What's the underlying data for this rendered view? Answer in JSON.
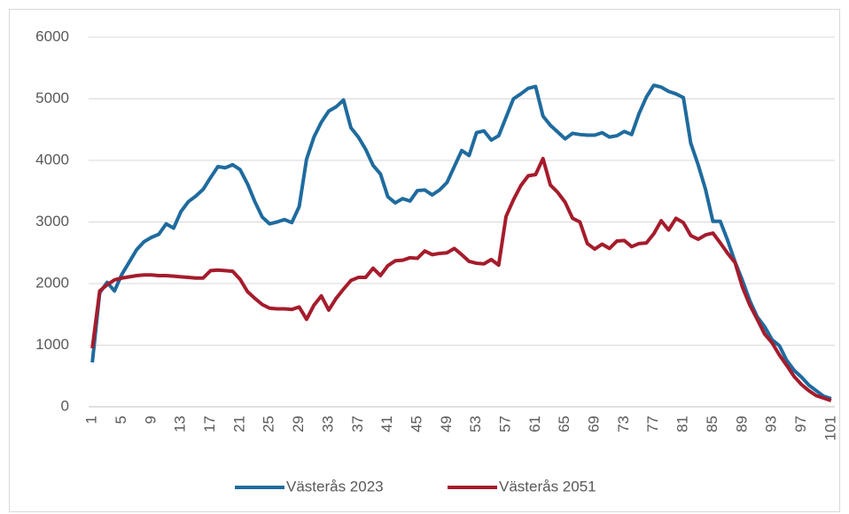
{
  "chart_data": {
    "type": "line",
    "x": [
      1,
      2,
      3,
      4,
      5,
      6,
      7,
      8,
      9,
      10,
      11,
      12,
      13,
      14,
      15,
      16,
      17,
      18,
      19,
      20,
      21,
      22,
      23,
      24,
      25,
      26,
      27,
      28,
      29,
      30,
      31,
      32,
      33,
      34,
      35,
      36,
      37,
      38,
      39,
      40,
      41,
      42,
      43,
      44,
      45,
      46,
      47,
      48,
      49,
      50,
      51,
      52,
      53,
      54,
      55,
      56,
      57,
      58,
      59,
      60,
      61,
      62,
      63,
      64,
      65,
      66,
      67,
      68,
      69,
      70,
      71,
      72,
      73,
      74,
      75,
      76,
      77,
      78,
      79,
      80,
      81,
      82,
      83,
      84,
      85,
      86,
      87,
      88,
      89,
      90,
      91,
      92,
      93,
      94,
      95,
      96,
      97,
      98,
      99,
      100,
      101
    ],
    "xlim": [
      0.5,
      101.5
    ],
    "xticks": [
      1,
      5,
      9,
      13,
      17,
      21,
      25,
      29,
      33,
      37,
      41,
      45,
      49,
      53,
      57,
      61,
      65,
      69,
      73,
      77,
      81,
      85,
      89,
      93,
      97,
      101
    ],
    "ylim": [
      0,
      6000
    ],
    "yticks": [
      0,
      1000,
      2000,
      3000,
      4000,
      5000,
      6000
    ],
    "grid": true,
    "legend": "bottom",
    "series": [
      {
        "name": "Västerås 2023",
        "color": "#1f6b9e",
        "values": [
          720,
          1850,
          2020,
          1880,
          2150,
          2350,
          2550,
          2680,
          2750,
          2800,
          2970,
          2900,
          3170,
          3330,
          3420,
          3530,
          3720,
          3900,
          3880,
          3930,
          3850,
          3620,
          3330,
          3080,
          2970,
          3000,
          3040,
          2990,
          3250,
          4020,
          4380,
          4620,
          4800,
          4870,
          4980,
          4530,
          4380,
          4180,
          3920,
          3780,
          3410,
          3310,
          3380,
          3340,
          3510,
          3520,
          3440,
          3520,
          3640,
          3900,
          4160,
          4080,
          4450,
          4480,
          4330,
          4400,
          4700,
          5000,
          5080,
          5170,
          5200,
          4720,
          4570,
          4460,
          4350,
          4440,
          4420,
          4410,
          4410,
          4450,
          4380,
          4400,
          4470,
          4420,
          4760,
          5030,
          5220,
          5190,
          5120,
          5080,
          5020,
          4280,
          3930,
          3530,
          3010,
          3010,
          2700,
          2350,
          2050,
          1720,
          1460,
          1300,
          1090,
          990,
          750,
          590,
          480,
          350,
          260,
          170,
          130
        ]
      },
      {
        "name": "Västerås 2051",
        "color": "#a51c2c",
        "values": [
          950,
          1880,
          1980,
          2060,
          2090,
          2110,
          2130,
          2140,
          2140,
          2130,
          2130,
          2120,
          2110,
          2100,
          2090,
          2090,
          2210,
          2220,
          2210,
          2200,
          2070,
          1870,
          1760,
          1660,
          1600,
          1590,
          1590,
          1580,
          1620,
          1420,
          1650,
          1800,
          1570,
          1760,
          1910,
          2050,
          2100,
          2100,
          2250,
          2130,
          2290,
          2370,
          2380,
          2420,
          2410,
          2530,
          2470,
          2490,
          2500,
          2570,
          2470,
          2360,
          2330,
          2320,
          2390,
          2300,
          3090,
          3360,
          3590,
          3750,
          3770,
          4030,
          3600,
          3480,
          3320,
          3060,
          3000,
          2650,
          2560,
          2640,
          2570,
          2690,
          2700,
          2600,
          2650,
          2660,
          2810,
          3020,
          2870,
          3060,
          2990,
          2780,
          2720,
          2790,
          2820,
          2660,
          2490,
          2340,
          1940,
          1650,
          1420,
          1180,
          1040,
          840,
          670,
          490,
          360,
          260,
          180,
          140,
          100
        ]
      }
    ]
  }
}
